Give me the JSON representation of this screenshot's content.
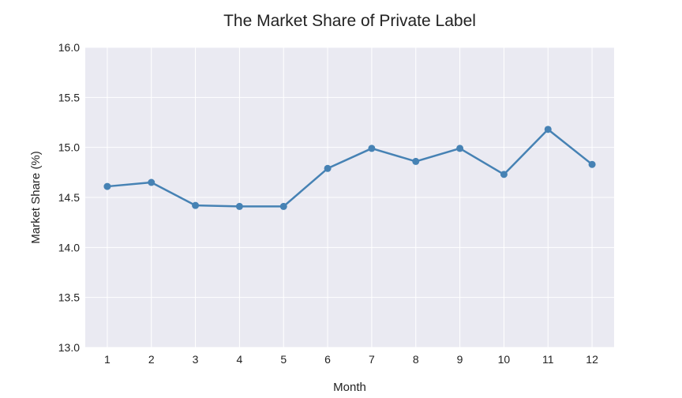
{
  "chart_data": {
    "type": "line",
    "title": "The Market Share of Private Label",
    "xlabel": "Month",
    "ylabel": "Market Share (%)",
    "x": [
      1,
      2,
      3,
      4,
      5,
      6,
      7,
      8,
      9,
      10,
      11,
      12
    ],
    "series": [
      {
        "values": [
          14.61,
          14.65,
          14.42,
          14.41,
          14.41,
          14.79,
          14.99,
          14.86,
          14.99,
          14.73,
          15.18,
          14.83
        ]
      }
    ],
    "xlim": [
      0.5,
      12.5
    ],
    "ylim": [
      13.0,
      16.0
    ],
    "xticks": [
      "1",
      "2",
      "3",
      "4",
      "5",
      "6",
      "7",
      "8",
      "9",
      "10",
      "11",
      "12"
    ],
    "yticks": [
      "13.0",
      "13.5",
      "14.0",
      "14.5",
      "15.0",
      "15.5",
      "16.0"
    ],
    "grid": true,
    "colors": {
      "line": "#4682b4",
      "plot_background": "#eaeaf2",
      "grid": "#ffffff"
    }
  }
}
